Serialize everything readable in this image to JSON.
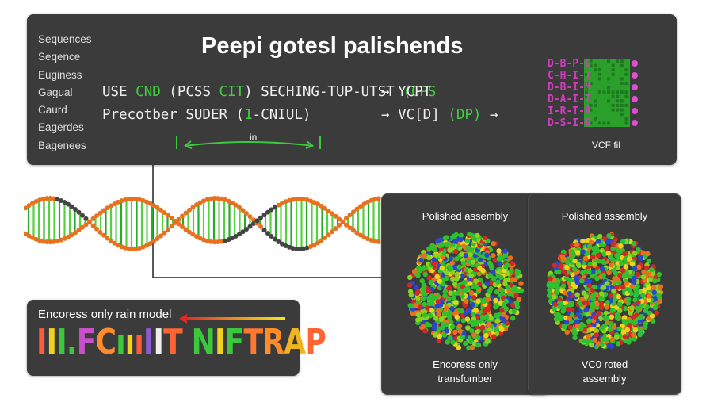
{
  "top_panel": {
    "title": "Peepi gotesl palishends",
    "side_list": [
      "Sequences",
      "Seqence",
      "Euginess",
      "Gagual",
      "Caurd",
      "Eagerdes",
      "Bagenees"
    ],
    "pipeline": {
      "line1_a": "USE ",
      "line1_g1": "CND",
      "line1_b": " (PCSS ",
      "line1_g2": "CIT",
      "line1_c": ") SECHING-TUP-UTST ",
      "line1_g3": "(CPS",
      "line2_a": "Precotber SUDER (",
      "line2_g1": "1",
      "line2_b": "-CNIUL)",
      "line3_a": "→ YCPT",
      "line4_a": "→ VC[D] ",
      "line4_g1": "(DP)",
      "line4_b": " →"
    },
    "measure_label": "in",
    "vcf_rows": [
      "D-B-P-G",
      "C-H-I-T",
      "D-B-I-M",
      "D-A-I-T",
      "I-R-T-A",
      "D-S-I-G"
    ],
    "vcf_label": "VCF fil"
  },
  "bottom_left": {
    "title": "Encoress only rain model",
    "logo_letters": [
      {
        "t": "I",
        "c": "#ff5a3c"
      },
      {
        "t": "I",
        "c": "#f0d21e"
      },
      {
        "t": "I",
        "c": "#3cc83c"
      },
      {
        "t": ".",
        "c": "#3cc83c"
      },
      {
        "t": "F",
        "c": "#c850c8"
      },
      {
        "t": "C",
        "c": "#ff8c28"
      },
      {
        "t": "ı",
        "c": "#3cc83c"
      },
      {
        "t": "ı",
        "c": "#f0d21e"
      },
      {
        "t": "ı",
        "c": "#ff5a3c"
      },
      {
        "t": "I",
        "c": "#8c5ad2"
      },
      {
        "t": "I",
        "c": "#eeeeee"
      },
      {
        "t": "T",
        "c": "#ff6432"
      },
      {
        "t": " ",
        "c": "#ffffff"
      },
      {
        "t": "N",
        "c": "#3cc83c"
      },
      {
        "t": "I",
        "c": "#f0d21e"
      },
      {
        "t": "F",
        "c": "#3cc83c"
      },
      {
        "t": "T",
        "c": "#ff7830"
      },
      {
        "t": "R",
        "c": "#ff8c28"
      },
      {
        "t": "A",
        "c": "#f0b41e"
      },
      {
        "t": "P",
        "c": "#ff6432"
      }
    ]
  },
  "assembly_left": {
    "title": "Polished assembly",
    "caption": [
      "Encoress only",
      "transfomber"
    ]
  },
  "assembly_right": {
    "title": "Polished assembly",
    "caption": [
      "VC0 roted",
      "assembly"
    ]
  },
  "colors": {
    "panel": "#3b3b3c",
    "green": "#3cc83c",
    "orange": "#e8701e",
    "magenta": "#d23cbe"
  }
}
